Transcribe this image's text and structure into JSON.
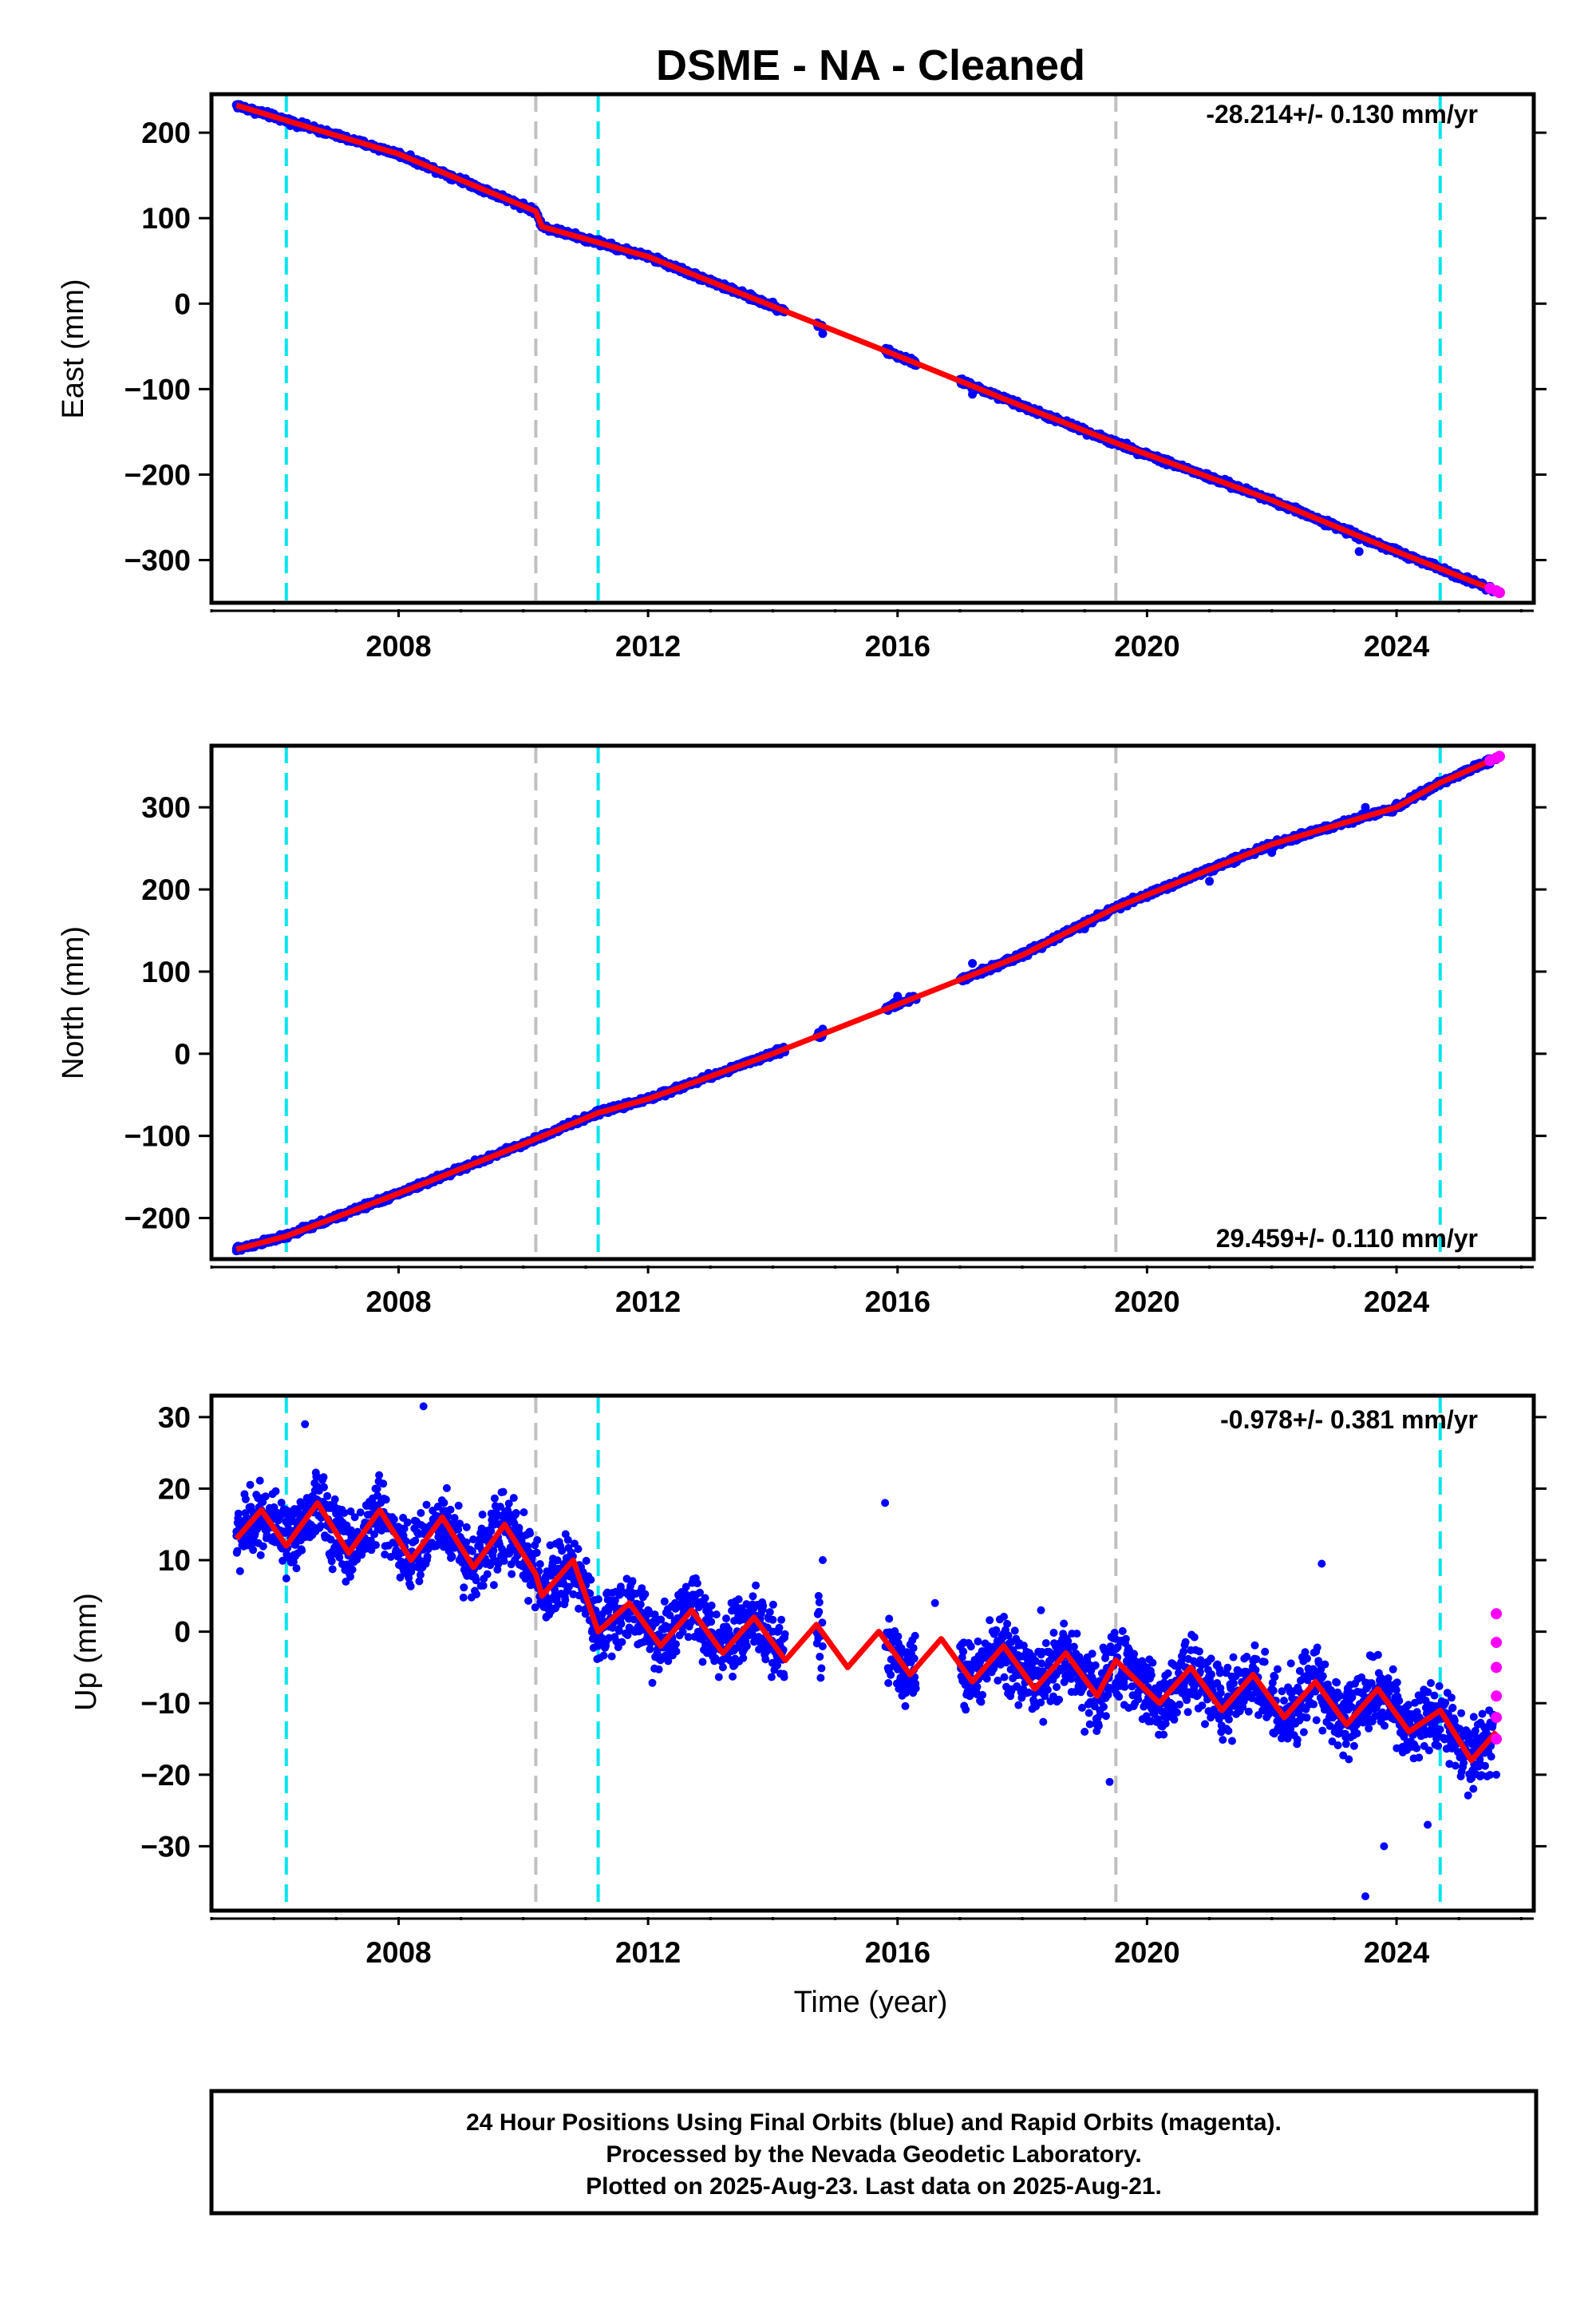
{
  "title": "DSME  - NA - Cleaned",
  "colors": {
    "final_orbits": "#0000ff",
    "rapid_orbits": "#ff00ff",
    "model_fit": "#ff0000",
    "antenna_change_lines": "#00e5ee",
    "other_event_lines": "#c0c0c0"
  },
  "footer": {
    "line1": "24 Hour Positions Using Final Orbits (blue) and Rapid Orbits (magenta).",
    "line2": "Processed by the Nevada Geodetic Laboratory.",
    "line3": "Plotted on 2025-Aug-23. Last data on 2025-Aug-21."
  },
  "chart_data": [
    {
      "type": "scatter",
      "component": "east",
      "ylabel": "East (mm)",
      "xlabel": "",
      "rate_label": "-28.214+/- 0.130 mm/yr",
      "xlim": [
        2005.0,
        2026.2
      ],
      "ylim": [
        -350,
        245
      ],
      "yticks": [
        -300,
        -200,
        -100,
        0,
        100,
        200
      ],
      "xticks": [
        2008,
        2012,
        2016,
        2020,
        2024
      ],
      "vertical_lines_cyan": [
        2006.2,
        2011.2,
        2024.7
      ],
      "vertical_lines_gray": [
        2010.2,
        2019.5
      ],
      "data_gaps": [
        [
          2014.2,
          2014.7
        ],
        [
          2014.8,
          2015.8
        ],
        [
          2016.3,
          2017.0
        ]
      ],
      "trend": [
        [
          2005.4,
          232
        ],
        [
          2006.3,
          212
        ],
        [
          2008.0,
          175
        ],
        [
          2010.2,
          108
        ],
        [
          2010.3,
          90
        ],
        [
          2012.0,
          55
        ],
        [
          2014.0,
          -3
        ],
        [
          2016.0,
          -61
        ],
        [
          2018.0,
          -120
        ],
        [
          2019.5,
          -163
        ],
        [
          2022.0,
          -230
        ],
        [
          2024.0,
          -290
        ],
        [
          2024.7,
          -310
        ],
        [
          2025.6,
          -336
        ]
      ],
      "series": [
        {
          "label_ref": "final_orbits",
          "values": [
            [
              2005.4,
              232
            ],
            [
              2006.0,
              222
            ],
            [
              2007.0,
              196
            ],
            [
              2008.0,
              174
            ],
            [
              2009.0,
              147
            ],
            [
              2010.0,
              118
            ],
            [
              2010.3,
              90
            ],
            [
              2011.0,
              72
            ],
            [
              2012.0,
              55
            ],
            [
              2013.0,
              29
            ],
            [
              2014.0,
              2
            ],
            [
              2014.8,
              -35
            ],
            [
              2016.0,
              -64
            ],
            [
              2017.2,
              -106
            ],
            [
              2018.0,
              -121
            ],
            [
              2019.0,
              -148
            ],
            [
              2019.5,
              -163
            ],
            [
              2020.0,
              -174
            ],
            [
              2021.0,
              -203
            ],
            [
              2022.0,
              -232
            ],
            [
              2023.0,
              -258
            ],
            [
              2023.4,
              -290
            ],
            [
              2024.0,
              -290
            ],
            [
              2025.0,
              -322
            ],
            [
              2025.6,
              -336
            ]
          ]
        },
        {
          "label_ref": "rapid_orbits",
          "values": [
            [
              2025.5,
              -333
            ],
            [
              2025.6,
              -336
            ],
            [
              2025.65,
              -338
            ]
          ]
        }
      ]
    },
    {
      "type": "scatter",
      "component": "north",
      "ylabel": "North (mm)",
      "xlabel": "",
      "rate_label": "29.459+/- 0.110 mm/yr",
      "xlim": [
        2005.0,
        2026.2
      ],
      "ylim": [
        -250,
        375
      ],
      "yticks": [
        -200,
        -100,
        0,
        100,
        200,
        300
      ],
      "xticks": [
        2008,
        2012,
        2016,
        2020,
        2024
      ],
      "vertical_lines_cyan": [
        2006.2,
        2011.2,
        2024.7
      ],
      "vertical_lines_gray": [
        2010.2,
        2019.5
      ],
      "data_gaps": [
        [
          2014.2,
          2014.7
        ],
        [
          2014.8,
          2015.8
        ],
        [
          2016.3,
          2017.0
        ]
      ],
      "trend": [
        [
          2005.4,
          -238
        ],
        [
          2006.2,
          -222
        ],
        [
          2008.0,
          -170
        ],
        [
          2010.0,
          -110
        ],
        [
          2011.2,
          -72
        ],
        [
          2012.0,
          -55
        ],
        [
          2014.0,
          0
        ],
        [
          2016.0,
          60
        ],
        [
          2018.0,
          120
        ],
        [
          2019.5,
          178
        ],
        [
          2022.0,
          255
        ],
        [
          2024.0,
          300
        ],
        [
          2024.7,
          330
        ],
        [
          2025.6,
          360
        ]
      ],
      "series": [
        {
          "label_ref": "final_orbits",
          "values": [
            [
              2005.4,
              -240
            ],
            [
              2006.0,
              -228
            ],
            [
              2007.0,
              -200
            ],
            [
              2008.0,
              -172
            ],
            [
              2009.0,
              -140
            ],
            [
              2010.0,
              -112
            ],
            [
              2011.0,
              -80
            ],
            [
              2012.0,
              -55
            ],
            [
              2013.0,
              -30
            ],
            [
              2014.0,
              0
            ],
            [
              2014.8,
              30
            ],
            [
              2016.0,
              70
            ],
            [
              2017.2,
              110
            ],
            [
              2018.0,
              124
            ],
            [
              2019.0,
              152
            ],
            [
              2019.5,
              178
            ],
            [
              2020.0,
              190
            ],
            [
              2021.0,
              210
            ],
            [
              2022.0,
              245
            ],
            [
              2023.0,
              275
            ],
            [
              2023.5,
              300
            ],
            [
              2024.0,
              305
            ],
            [
              2025.0,
              338
            ],
            [
              2025.6,
              358
            ]
          ]
        },
        {
          "label_ref": "rapid_orbits",
          "values": [
            [
              2025.5,
              357
            ],
            [
              2025.6,
              360
            ],
            [
              2025.65,
              362
            ]
          ]
        }
      ]
    },
    {
      "type": "scatter",
      "component": "up",
      "ylabel": "Up (mm)",
      "xlabel": "Time (year)",
      "rate_label": "-0.978+/- 0.381 mm/yr",
      "xlim": [
        2005.0,
        2026.2
      ],
      "ylim": [
        -39,
        33
      ],
      "yticks": [
        -30,
        -20,
        -10,
        0,
        10,
        20,
        30
      ],
      "xticks": [
        2008,
        2012,
        2016,
        2020,
        2024
      ],
      "vertical_lines_cyan": [
        2006.2,
        2011.2,
        2024.7
      ],
      "vertical_lines_gray": [
        2010.2,
        2019.5
      ],
      "data_gaps": [
        [
          2014.2,
          2014.7
        ],
        [
          2014.8,
          2015.8
        ],
        [
          2016.3,
          2017.0
        ]
      ],
      "trend": [
        [
          2005.4,
          13
        ],
        [
          2005.8,
          17
        ],
        [
          2006.2,
          12
        ],
        [
          2006.7,
          18
        ],
        [
          2007.2,
          11
        ],
        [
          2007.7,
          17
        ],
        [
          2008.2,
          10
        ],
        [
          2008.7,
          16
        ],
        [
          2009.2,
          9
        ],
        [
          2009.7,
          15
        ],
        [
          2010.2,
          8
        ],
        [
          2010.3,
          5
        ],
        [
          2010.8,
          10
        ],
        [
          2011.2,
          0
        ],
        [
          2011.7,
          4
        ],
        [
          2012.2,
          -2
        ],
        [
          2012.7,
          3
        ],
        [
          2013.2,
          -3
        ],
        [
          2013.7,
          2
        ],
        [
          2014.2,
          -4
        ],
        [
          2014.7,
          1
        ],
        [
          2015.2,
          -5
        ],
        [
          2015.7,
          0
        ],
        [
          2016.2,
          -6
        ],
        [
          2016.7,
          -1
        ],
        [
          2017.2,
          -7
        ],
        [
          2017.7,
          -2
        ],
        [
          2018.2,
          -8
        ],
        [
          2018.7,
          -3
        ],
        [
          2019.2,
          -9
        ],
        [
          2019.5,
          -4
        ],
        [
          2020.2,
          -10
        ],
        [
          2020.7,
          -5
        ],
        [
          2021.2,
          -11
        ],
        [
          2021.7,
          -6
        ],
        [
          2022.2,
          -12
        ],
        [
          2022.7,
          -7
        ],
        [
          2023.2,
          -13
        ],
        [
          2023.7,
          -8
        ],
        [
          2024.2,
          -14
        ],
        [
          2024.7,
          -11
        ],
        [
          2025.2,
          -18
        ],
        [
          2025.6,
          -14
        ]
      ],
      "series": [
        {
          "label_ref": "final_orbits",
          "values": [
            [
              2005.4,
              14
            ],
            [
              2005.8,
              17
            ],
            [
              2006.5,
              29
            ],
            [
              2007.0,
              12
            ],
            [
              2008.0,
              14
            ],
            [
              2008.4,
              31.5
            ],
            [
              2009.0,
              13
            ],
            [
              2010.0,
              12
            ],
            [
              2010.5,
              5
            ],
            [
              2011.2,
              -2
            ],
            [
              2012.0,
              3
            ],
            [
              2013.0,
              -3
            ],
            [
              2014.0,
              0
            ],
            [
              2014.8,
              10
            ],
            [
              2015.8,
              18
            ],
            [
              2016.2,
              -7
            ],
            [
              2016.6,
              4
            ],
            [
              2017.5,
              -3
            ],
            [
              2018.3,
              3
            ],
            [
              2019.0,
              -14
            ],
            [
              2019.4,
              -21
            ],
            [
              2020.0,
              -5
            ],
            [
              2021.0,
              -7
            ],
            [
              2022.0,
              -8
            ],
            [
              2022.8,
              9.5
            ],
            [
              2023.0,
              -10
            ],
            [
              2023.5,
              -37
            ],
            [
              2023.8,
              -30
            ],
            [
              2024.0,
              -10
            ],
            [
              2024.5,
              -27
            ],
            [
              2025.0,
              -15
            ],
            [
              2025.6,
              -20
            ]
          ]
        },
        {
          "label_ref": "rapid_orbits",
          "values": [
            [
              2025.6,
              2.5
            ],
            [
              2025.6,
              -1.5
            ],
            [
              2025.6,
              -5
            ],
            [
              2025.6,
              -9
            ],
            [
              2025.6,
              -12
            ],
            [
              2025.6,
              -15
            ]
          ]
        }
      ]
    }
  ]
}
